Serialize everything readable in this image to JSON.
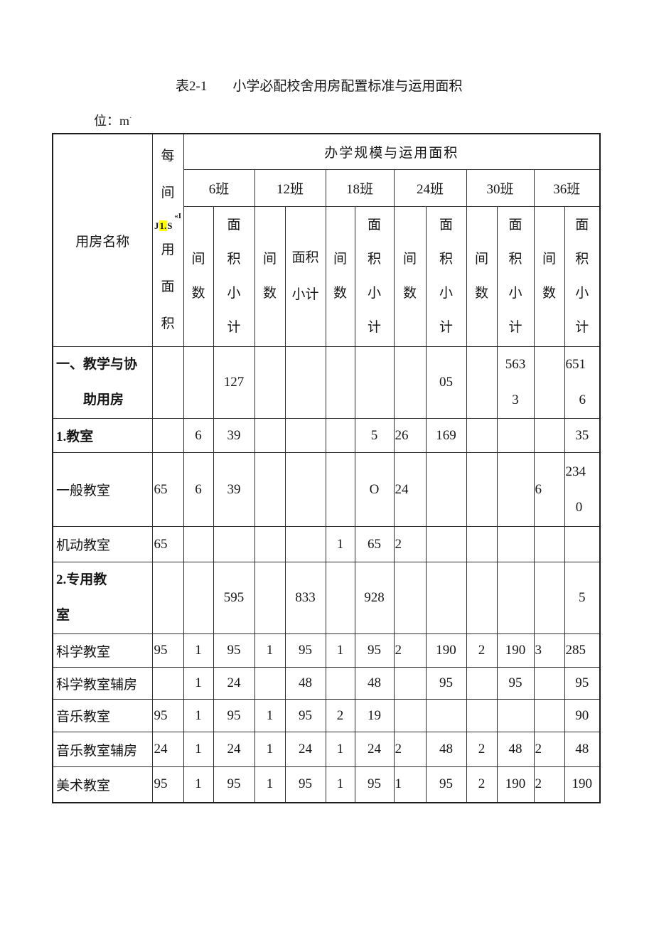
{
  "title": {
    "tag": "表2-1",
    "text": "小学必配校舍用房配置标准与运用面积"
  },
  "unit_label": "位：m",
  "unit_sup": "·",
  "table": {
    "header": {
      "room_name": "用房名称",
      "per_room": {
        "top": "每间",
        "note_top": "«I",
        "note_j": "J",
        "note_hl": "1.",
        "note_s": "S",
        "bottom": "用面积"
      },
      "scale_title": "办学规模与运用面积",
      "class_groups": [
        "6班",
        "12班",
        "18班",
        "24班",
        "30班",
        "36班"
      ],
      "rooms_count": "间数",
      "area_subtotal": "面积小计",
      "area_subtotal_wrapped": "面积\n小计"
    },
    "rows": [
      {
        "name": "一、教学与协\n　　助用房",
        "cells": [
          "",
          "",
          "127",
          "",
          "",
          "",
          "",
          "",
          "05",
          "",
          "563\n3",
          "",
          "651\n    6"
        ]
      },
      {
        "name": "1.教室",
        "cells": [
          "",
          "6",
          "39",
          "",
          "",
          "",
          "5",
          "26",
          "169",
          "",
          "",
          "",
          "35"
        ]
      },
      {
        "name": "一般教室",
        "cells": [
          "65",
          "6",
          "39",
          "",
          "",
          "",
          "O",
          "24",
          "",
          "",
          "",
          "6",
          "234\n   0"
        ]
      },
      {
        "name": "机动教室",
        "cells": [
          "65",
          "",
          "",
          "",
          "",
          "1",
          "65",
          "2",
          "",
          "",
          "",
          "",
          ""
        ]
      },
      {
        "name": "2.专用教\n室",
        "cells": [
          "",
          "",
          "595",
          "",
          "833",
          "",
          "928",
          "",
          "",
          "",
          "",
          "",
          "5"
        ]
      },
      {
        "name": "科学教室",
        "cells": [
          "95",
          "1",
          "95",
          "1",
          "95",
          "1",
          "95",
          "2",
          "190",
          "2",
          "190",
          "3",
          "285"
        ]
      },
      {
        "name": "科学教室辅房",
        "cells": [
          "",
          "1",
          "24",
          "",
          "48",
          "",
          "48",
          "",
          "95",
          "",
          "95",
          "",
          "95"
        ]
      },
      {
        "name": "音乐教室",
        "cells": [
          "95",
          "1",
          "95",
          "1",
          "95",
          "2",
          "19",
          "",
          "",
          "",
          "",
          "",
          "90"
        ]
      },
      {
        "name": "音乐教室辅房",
        "cells": [
          "24",
          "1",
          "24",
          "1",
          "24",
          "1",
          "24",
          "2",
          "48",
          "2",
          "48",
          "2",
          "48"
        ]
      },
      {
        "name": "美术教室",
        "cells": [
          "95",
          "1",
          "95",
          "1",
          "95",
          "1",
          "95",
          "1",
          "95",
          "2",
          "190",
          "2",
          "190"
        ]
      }
    ]
  }
}
